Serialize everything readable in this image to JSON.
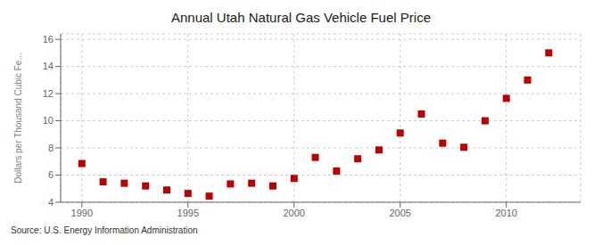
{
  "chart_data": {
    "type": "scatter",
    "title": "Annual Utah Natural Gas Vehicle Fuel Price",
    "ylabel": "Dollars per Thousand Cubic Fe...",
    "source": "Source: U.S. Energy Information Administration",
    "x": [
      1990,
      1991,
      1992,
      1993,
      1994,
      1995,
      1996,
      1997,
      1998,
      1999,
      2000,
      2001,
      2002,
      2003,
      2004,
      2005,
      2006,
      2007,
      2008,
      2009,
      2010,
      2011,
      2012
    ],
    "values": [
      6.85,
      5.5,
      5.4,
      5.2,
      4.9,
      4.65,
      4.45,
      5.35,
      5.4,
      5.2,
      5.75,
      7.3,
      6.3,
      7.2,
      7.85,
      9.1,
      10.5,
      8.35,
      8.05,
      10.0,
      11.65,
      13.0,
      15.0
    ],
    "color": "#bb0000",
    "marker": "square",
    "xlim": [
      1989,
      2013.5
    ],
    "ylim": [
      4,
      16.4
    ],
    "xticks": [
      1990,
      1995,
      2000,
      2005,
      2010
    ],
    "yticks": [
      4,
      6,
      8,
      10,
      12,
      14,
      16
    ],
    "grid": true
  }
}
